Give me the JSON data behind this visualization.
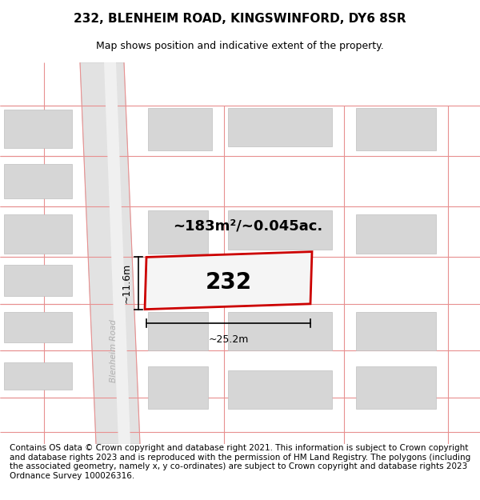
{
  "title": "232, BLENHEIM ROAD, KINGSWINFORD, DY6 8SR",
  "subtitle": "Map shows position and indicative extent of the property.",
  "footnote": "Contains OS data © Crown copyright and database right 2021. This information is subject to Crown copyright and database rights 2023 and is reproduced with the permission of HM Land Registry. The polygons (including the associated geometry, namely x, y co-ordinates) are subject to Crown copyright and database rights 2023 Ordnance Survey 100026316.",
  "area_label": "~183m²/~0.045ac.",
  "plot_number": "232",
  "width_label": "~25.2m",
  "height_label": "~11.6m",
  "road_label": "Blenheim Road",
  "map_bg": "#efefef",
  "road_fill": "#e2e2e2",
  "plot_edge_color": "#cc0000",
  "plot_fill": "#f0f0f0",
  "building_fill": "#d6d6d6",
  "building_edge": "#c0c0c0",
  "grid_color": "#e89090",
  "title_fontsize": 11,
  "subtitle_fontsize": 9,
  "footnote_fontsize": 7.5,
  "road_label_color": "#b0b0b0"
}
